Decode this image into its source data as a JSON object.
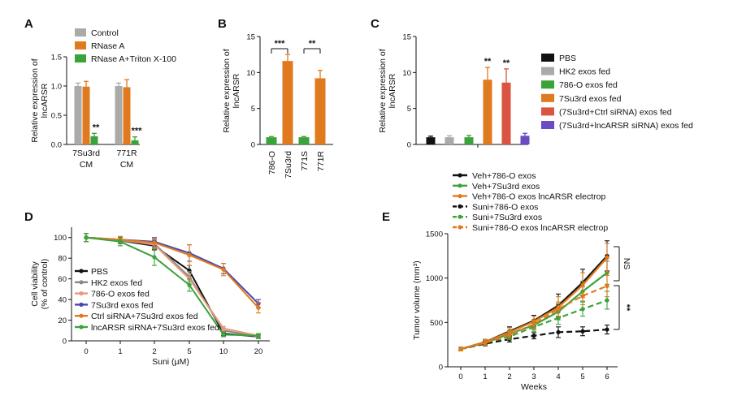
{
  "chart_data": [
    {
      "id": "A",
      "type": "bar",
      "panel_label": "A",
      "ylabel_lines": [
        "Relative expression of",
        "lncARSR"
      ],
      "yticks": [
        "0.0",
        "0.5",
        "1.0",
        "1.5"
      ],
      "ylim": [
        0,
        1.5
      ],
      "categories": [
        [
          "7Su3rd",
          "CM"
        ],
        [
          "771R",
          "CM"
        ]
      ],
      "series": [
        {
          "name": "Control",
          "color": "#aaaaaa",
          "values": [
            1.0,
            1.0
          ],
          "errors": [
            0.05,
            0.05
          ]
        },
        {
          "name": "RNase A",
          "color": "#e07a1f",
          "values": [
            0.99,
            0.98
          ],
          "errors": [
            0.09,
            0.13
          ]
        },
        {
          "name": "RNase A+Triton X-100",
          "color": "#3aa33a",
          "values": [
            0.14,
            0.07
          ],
          "errors": [
            0.05,
            0.06
          ]
        }
      ],
      "annotations": [
        "**",
        "***"
      ]
    },
    {
      "id": "B",
      "type": "bar",
      "panel_label": "B",
      "ylabel_lines": [
        "Relative expression of",
        "lncARSR"
      ],
      "yticks": [
        "0",
        "5",
        "10",
        "15"
      ],
      "ylim": [
        0,
        15
      ],
      "categories": [
        "786-O",
        "7Su3rd",
        "771S",
        "771R"
      ],
      "values": [
        1.0,
        11.6,
        1.0,
        9.2
      ],
      "errors": [
        0.1,
        0.9,
        0.1,
        1.1
      ],
      "colors": [
        "#3aa33a",
        "#e07a1f",
        "#3aa33a",
        "#e07a1f"
      ],
      "annotations": [
        "***",
        "**"
      ]
    },
    {
      "id": "C",
      "type": "bar",
      "panel_label": "C",
      "ylabel_lines": [
        "Relative expression of",
        "lncARSR"
      ],
      "yticks": [
        "0",
        "5",
        "10",
        "15"
      ],
      "ylim": [
        0,
        15
      ],
      "series": [
        {
          "name": "PBS",
          "color": "#111111",
          "value": 1.0,
          "error": 0.15
        },
        {
          "name": "HK2 exos fed",
          "color": "#aaaaaa",
          "value": 1.0,
          "error": 0.2
        },
        {
          "name": "786-O exos fed",
          "color": "#3aa33a",
          "value": 1.0,
          "error": 0.25
        },
        {
          "name": "7Su3rd exos fed",
          "color": "#e07a1f",
          "value": 9.0,
          "error": 1.7
        },
        {
          "name": "(7Su3rd+Ctrl siRNA) exos fed",
          "color": "#d9553f",
          "value": 8.6,
          "error": 1.9
        },
        {
          "name": "(7Su3rd+lncARSR siRNA) exos fed",
          "color": "#6a4bc4",
          "value": 1.2,
          "error": 0.35
        }
      ],
      "annotations": [
        "**",
        "**"
      ]
    },
    {
      "id": "D",
      "type": "line",
      "panel_label": "D",
      "xlabel": "Suni (μM)",
      "ylabel_lines": [
        "Cell viability",
        "(% of control)"
      ],
      "xticks": [
        "0",
        "1",
        "2",
        "5",
        "10",
        "20"
      ],
      "yticks": [
        "0",
        "20",
        "40",
        "60",
        "80",
        "100"
      ],
      "ylim": [
        0,
        110
      ],
      "series": [
        {
          "name": "PBS",
          "color": "#111111",
          "values": [
            100,
            97,
            92,
            68,
            7,
            4
          ],
          "errors": [
            4,
            3,
            4,
            5,
            2,
            2
          ]
        },
        {
          "name": "HK2 exos fed",
          "color": "#888888",
          "values": [
            100,
            97,
            94,
            62,
            10,
            4
          ],
          "errors": [
            4,
            3,
            4,
            5,
            2,
            2
          ]
        },
        {
          "name": "786-O exos fed",
          "color": "#e8997b",
          "values": [
            100,
            98,
            93,
            60,
            12,
            5
          ],
          "errors": [
            4,
            3,
            4,
            5,
            2,
            2
          ]
        },
        {
          "name": "7Su3rd exos fed",
          "color": "#4a47a8",
          "values": [
            100,
            98,
            96,
            85,
            70,
            36
          ],
          "errors": [
            4,
            3,
            4,
            8,
            5,
            4
          ]
        },
        {
          "name": "Ctrl siRNA+7Su3rd exos fed",
          "color": "#e07a1f",
          "values": [
            100,
            98,
            95,
            83,
            69,
            32
          ],
          "errors": [
            4,
            3,
            4,
            10,
            6,
            5
          ]
        },
        {
          "name": "lncARSR siRNA+7Su3rd exos fed",
          "color": "#3aa33a",
          "values": [
            100,
            96,
            81,
            54,
            6,
            5
          ],
          "errors": [
            4,
            4,
            8,
            6,
            2,
            2
          ]
        }
      ]
    },
    {
      "id": "E",
      "type": "line",
      "panel_label": "E",
      "xlabel": "Weeks",
      "ylabel": "Tumor volume (mm³)",
      "xticks": [
        "0",
        "1",
        "2",
        "3",
        "4",
        "5",
        "6"
      ],
      "yticks": [
        "0",
        "500",
        "1000",
        "1500"
      ],
      "ylim": [
        0,
        1500
      ],
      "series": [
        {
          "name": "Veh+786-O exos",
          "color": "#111111",
          "dash": false,
          "values": [
            200,
            280,
            400,
            520,
            690,
            950,
            1250
          ],
          "errors": [
            20,
            30,
            50,
            60,
            130,
            150,
            170
          ]
        },
        {
          "name": "Veh+7Su3rd exos",
          "color": "#3aa33a",
          "dash": false,
          "values": [
            200,
            270,
            370,
            470,
            620,
            850,
            1060
          ],
          "errors": [
            20,
            30,
            40,
            50,
            90,
            110,
            130
          ]
        },
        {
          "name": "Veh+786-O exos lncARSR electrop",
          "color": "#e07a1f",
          "dash": false,
          "values": [
            200,
            280,
            390,
            510,
            670,
            920,
            1230
          ],
          "errors": [
            20,
            30,
            50,
            60,
            120,
            140,
            160
          ]
        },
        {
          "name": "Suni+786-O exos",
          "color": "#111111",
          "dash": true,
          "values": [
            200,
            260,
            310,
            350,
            390,
            400,
            420
          ],
          "errors": [
            20,
            25,
            30,
            35,
            60,
            50,
            50
          ]
        },
        {
          "name": "Suni+7Su3rd exos",
          "color": "#3aa33a",
          "dash": true,
          "values": [
            200,
            270,
            340,
            450,
            550,
            650,
            750
          ],
          "errors": [
            20,
            25,
            35,
            50,
            70,
            80,
            100
          ]
        },
        {
          "name": "Suni+786-O exos lncARSR electrop",
          "color": "#e07a1f",
          "dash": true,
          "values": [
            200,
            270,
            360,
            480,
            650,
            800,
            910
          ],
          "errors": [
            20,
            30,
            40,
            50,
            80,
            100,
            120
          ]
        }
      ],
      "annotations": [
        "NS",
        "**"
      ]
    }
  ]
}
